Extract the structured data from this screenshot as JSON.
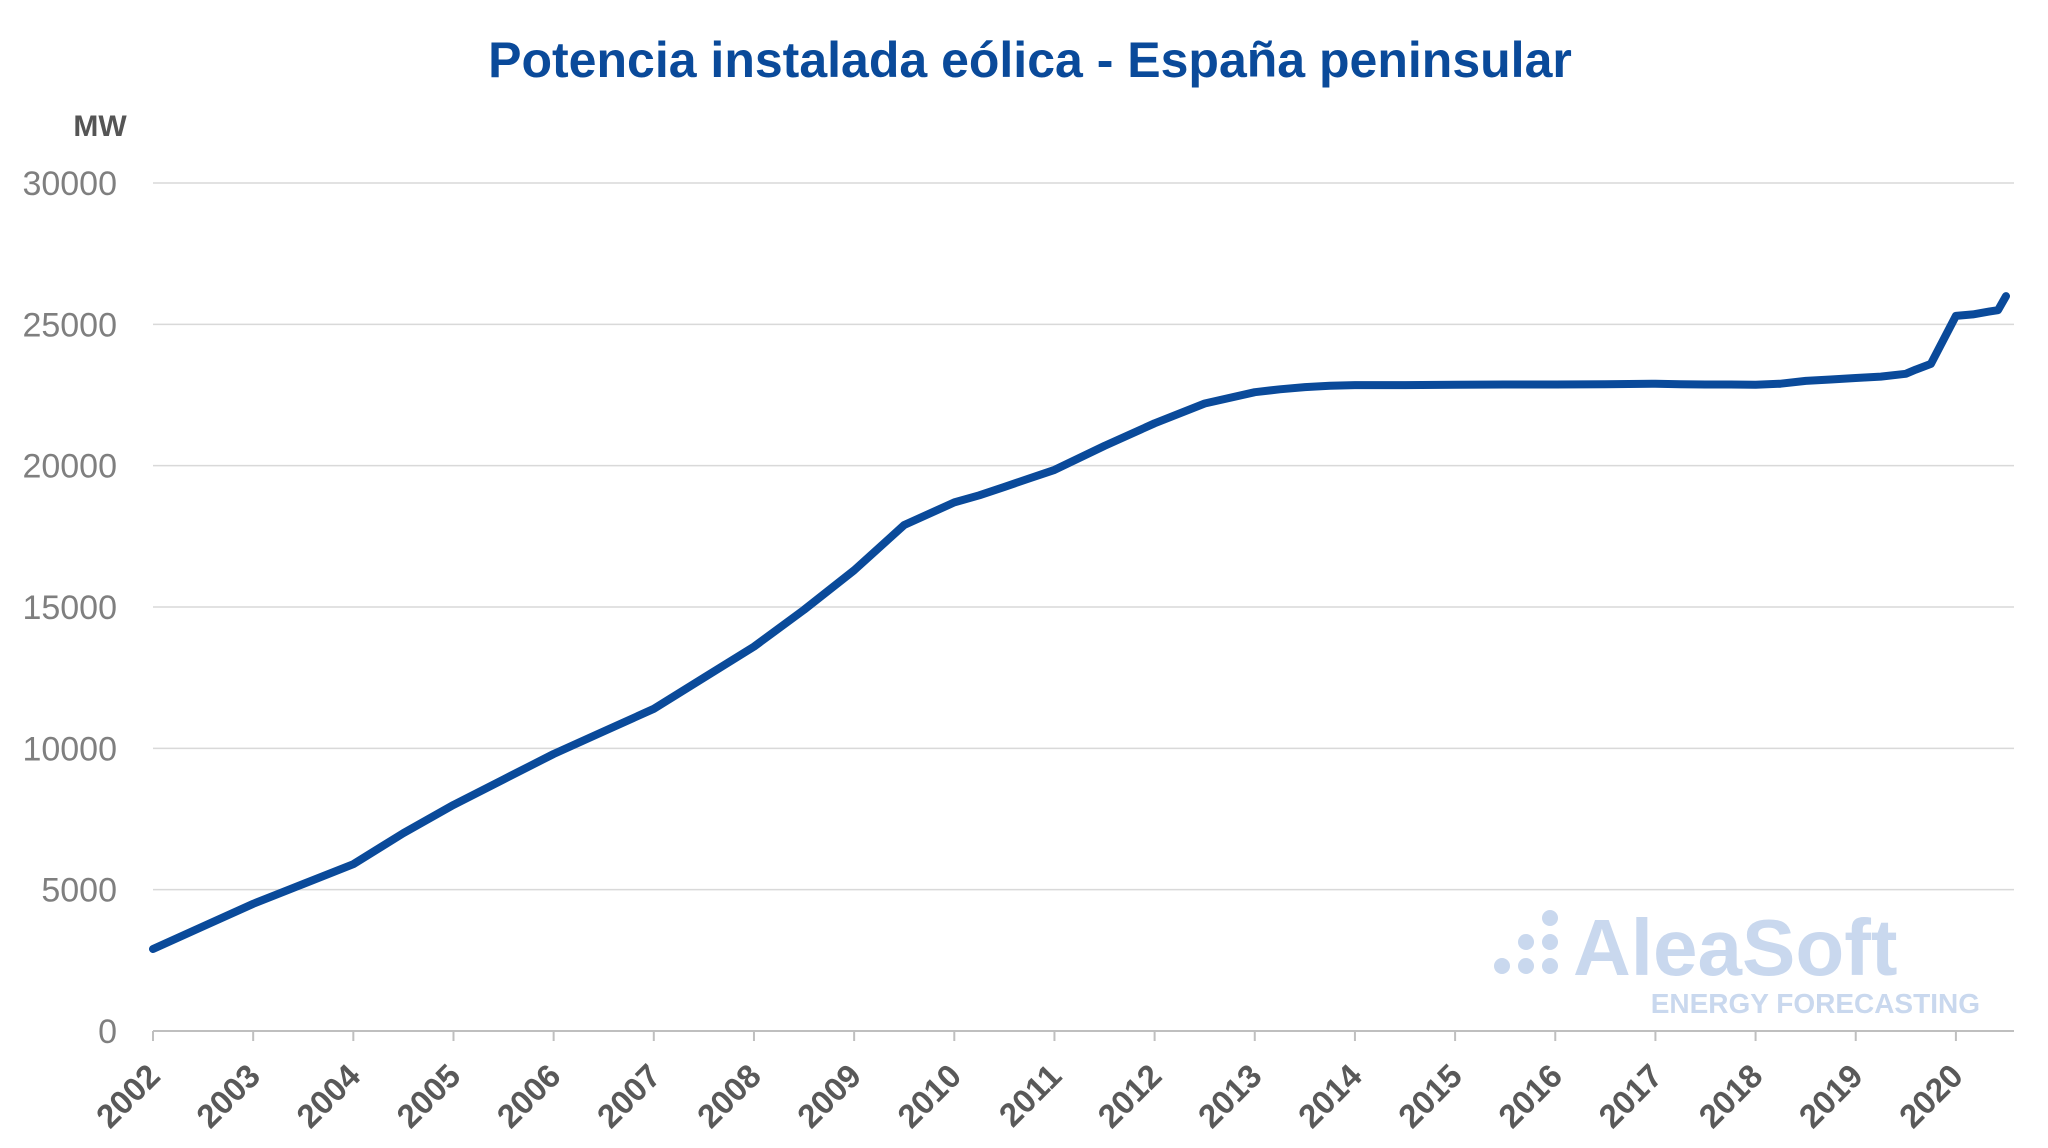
{
  "chart_data": {
    "type": "line",
    "title": "Potencia instalada eólica - España peninsular",
    "ylabel": "MW",
    "xlabel": "",
    "ylim": [
      0,
      30000
    ],
    "y_ticks": [
      0,
      5000,
      10000,
      15000,
      20000,
      25000,
      30000
    ],
    "x_tick_labels": [
      "2002",
      "2003",
      "2004",
      "2005",
      "2006",
      "2007",
      "2008",
      "2009",
      "2010",
      "2011",
      "2012",
      "2013",
      "2014",
      "2015",
      "2016",
      "2017",
      "2018",
      "2019",
      "2020"
    ],
    "xlim": [
      2002,
      2020.58
    ],
    "grid": true,
    "legend": "none",
    "series": [
      {
        "color": "#0a4a9a",
        "x": [
          2002.0,
          2002.5,
          2003.0,
          2003.5,
          2004.0,
          2004.5,
          2005.0,
          2005.5,
          2006.0,
          2006.5,
          2007.0,
          2007.5,
          2008.0,
          2008.5,
          2009.0,
          2009.5,
          2010.0,
          2010.25,
          2010.5,
          2010.75,
          2011.0,
          2011.5,
          2012.0,
          2012.5,
          2013.0,
          2013.25,
          2013.5,
          2013.75,
          2014.0,
          2014.5,
          2015.0,
          2015.5,
          2016.0,
          2016.5,
          2017.0,
          2017.25,
          2017.5,
          2017.75,
          2018.0,
          2018.25,
          2018.5,
          2018.75,
          2019.0,
          2019.25,
          2019.5,
          2019.6,
          2019.75,
          2020.0,
          2020.17,
          2020.33,
          2020.42,
          2020.5
        ],
        "values": [
          2900,
          3700,
          4500,
          5200,
          5900,
          7000,
          8000,
          8900,
          9800,
          10600,
          11400,
          12500,
          13600,
          14900,
          16300,
          17900,
          18700,
          18950,
          19250,
          19550,
          19850,
          20700,
          21500,
          22200,
          22600,
          22700,
          22780,
          22830,
          22850,
          22850,
          22860,
          22870,
          22870,
          22880,
          22900,
          22880,
          22870,
          22870,
          22860,
          22900,
          23000,
          23050,
          23100,
          23150,
          23250,
          23400,
          23600,
          25300,
          25350,
          25450,
          25500,
          26000
        ]
      }
    ]
  },
  "watermark": {
    "brand": "AleaSoft",
    "tagline": "ENERGY FORECASTING",
    "color": "#c9d8ee"
  }
}
